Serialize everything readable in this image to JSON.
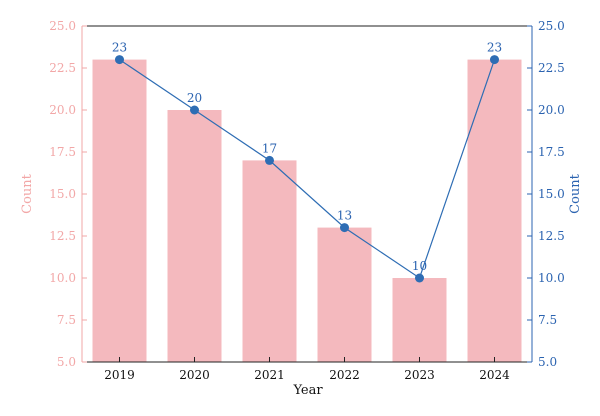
{
  "chart_data": {
    "type": "bar",
    "categories": [
      "2019",
      "2020",
      "2021",
      "2022",
      "2023",
      "2024"
    ],
    "series": [
      {
        "type": "bar",
        "values": [
          23,
          20,
          17,
          13,
          10,
          23
        ]
      },
      {
        "type": "line",
        "values": [
          23,
          20,
          17,
          13,
          10,
          23
        ]
      }
    ],
    "data_labels": [
      "23",
      "20",
      "17",
      "13",
      "10",
      "23"
    ],
    "xlabel": "Year",
    "ylabel_left": "Count",
    "ylabel_right": "Count",
    "ylim": [
      5,
      25
    ],
    "yticks": [
      "5.0",
      "7.5",
      "10.0",
      "12.5",
      "15.0",
      "17.5",
      "20.0",
      "22.5",
      "25.0"
    ],
    "ytick_values": [
      5,
      7.5,
      10,
      12.5,
      15,
      17.5,
      20,
      22.5,
      25
    ],
    "grid": false,
    "colors": {
      "bar": "#f4b9be",
      "line": "#2e6db4",
      "left_axis": "#f2a7a7",
      "right_axis": "#2b63b0",
      "frame": "#222222"
    }
  }
}
